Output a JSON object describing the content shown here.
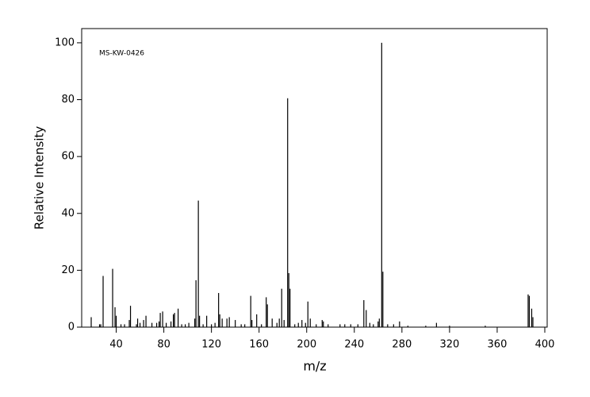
{
  "chart_data": {
    "type": "bar",
    "annotation": "MS-KW-0426",
    "x_label": "m/z",
    "y_label": "Relative Intensity",
    "color": "#000000",
    "xlim": [
      11,
      402
    ],
    "ylim": [
      0,
      105
    ],
    "xticks": [
      40,
      80,
      120,
      160,
      200,
      240,
      280,
      320,
      360,
      400
    ],
    "yticks": [
      0,
      20,
      40,
      60,
      80,
      100
    ],
    "x": [
      19,
      26,
      27,
      29,
      37,
      39,
      40,
      44,
      47,
      51,
      52,
      57,
      58,
      60,
      63,
      65,
      70,
      74,
      76,
      77,
      79,
      82,
      86,
      88,
      89,
      92,
      95,
      98,
      101,
      106,
      107,
      109,
      110,
      113,
      116,
      120,
      123,
      126,
      127,
      129,
      133,
      135,
      140,
      145,
      148,
      153,
      154,
      158,
      162,
      166,
      167,
      171,
      175,
      177,
      179,
      181,
      184,
      185,
      186,
      190,
      193,
      196,
      199,
      201,
      203,
      208,
      213,
      214,
      218,
      228,
      232,
      237,
      243,
      248,
      250,
      253,
      256,
      260,
      261,
      263,
      264,
      268,
      273,
      278,
      285,
      300,
      309,
      320,
      350,
      386,
      387,
      389,
      390
    ],
    "values": [
      3.5,
      1,
      1,
      18,
      20.5,
      7,
      4,
      1,
      1,
      2.5,
      7.5,
      1,
      3,
      1.5,
      2.5,
      4,
      1.5,
      1.5,
      2,
      5,
      5.5,
      1.5,
      2,
      4.5,
      5,
      6.5,
      1,
      1,
      1.5,
      3,
      16.5,
      44.5,
      4,
      1,
      4,
      1,
      1.5,
      12,
      4.5,
      3,
      3,
      3.5,
      2.5,
      1,
      1,
      11,
      2.5,
      4.5,
      1,
      10.5,
      8,
      3,
      1.5,
      3,
      13.5,
      2.5,
      80.5,
      19,
      13.5,
      1,
      1.5,
      2.5,
      1.5,
      9,
      3,
      1,
      2.5,
      2,
      1,
      1,
      1,
      1,
      1,
      9.5,
      6,
      1.5,
      1,
      2,
      3,
      100,
      19.5,
      1,
      1,
      2,
      0.5,
      0.5,
      1.5,
      0.5,
      0.5,
      11.5,
      11,
      6.5,
      3.5
    ]
  }
}
